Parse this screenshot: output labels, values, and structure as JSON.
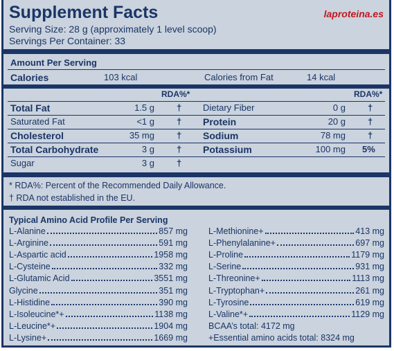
{
  "header": {
    "title": "Supplement Facts",
    "logo": "laproteina.es",
    "serving_size": "Serving Size: 28 g (approximately 1 level scoop)",
    "servings": "Servings Per Container: 33"
  },
  "amount_per_serving": "Amount Per Serving",
  "calories": {
    "label": "Calories",
    "value": "103 kcal"
  },
  "calories_from_fat": {
    "label": "Calories from Fat",
    "value": "14 kcal"
  },
  "rda_header": "RDA%*",
  "nutrients": {
    "left": [
      {
        "label": "Total Fat",
        "amount": "1.5 g",
        "rda": "†",
        "bold": true
      },
      {
        "label": "Saturated Fat",
        "amount": "<1 g",
        "rda": "†",
        "bold": false
      },
      {
        "label": "Cholesterol",
        "amount": "35 mg",
        "rda": "†",
        "bold": true
      },
      {
        "label": "Total Carbohydrate",
        "amount": "3 g",
        "rda": "†",
        "bold": true
      },
      {
        "label": "Sugar",
        "amount": "3 g",
        "rda": "†",
        "bold": false
      }
    ],
    "right": [
      {
        "label": "Dietary Fiber",
        "amount": "0 g",
        "rda": "†",
        "bold": false
      },
      {
        "label": "Protein",
        "amount": "20 g",
        "rda": "†",
        "bold": true
      },
      {
        "label": "Sodium",
        "amount": "78 mg",
        "rda": "†",
        "bold": true
      },
      {
        "label": "Potassium",
        "amount": "100 mg",
        "rda": "5%",
        "bold": true
      }
    ]
  },
  "footnotes": [
    "* RDA%: Percent of the Recommended Daily Allowance.",
    "† RDA not established in the EU."
  ],
  "amino": {
    "title": "Typical Amino Acid Profile Per Serving",
    "left": [
      {
        "name": "L-Alanine",
        "value": "857 mg"
      },
      {
        "name": "L-Arginine",
        "value": "591 mg"
      },
      {
        "name": "L-Aspartic acid",
        "value": "1958 mg"
      },
      {
        "name": "L-Cysteine",
        "value": "332 mg"
      },
      {
        "name": "L-Glutamic Acid",
        "value": "3551 mg"
      },
      {
        "name": "Glycine",
        "value": "351 mg"
      },
      {
        "name": "L-Histidine",
        "value": "390 mg"
      },
      {
        "name": "L-Isoleucine*+",
        "value": "1138 mg"
      },
      {
        "name": "L-Leucine*+",
        "value": "1904 mg"
      },
      {
        "name": "L-Lysine+",
        "value": "1669 mg"
      }
    ],
    "right": [
      {
        "name": "L-Methionine+",
        "value": "413 mg"
      },
      {
        "name": "L-Phenylalanine+",
        "value": "697 mg"
      },
      {
        "name": "L-Proline",
        "value": "1179 mg"
      },
      {
        "name": "L-Serine",
        "value": "931 mg"
      },
      {
        "name": "L-Threonine+",
        "value": "1113 mg"
      },
      {
        "name": "L-Tryptophan+",
        "value": "261 mg"
      },
      {
        "name": "L-Tyrosine",
        "value": "619 mg"
      },
      {
        "name": "L-Valine*+",
        "value": "1129 mg"
      }
    ],
    "totals": [
      "BCAA’s total: 4172 mg",
      "+Essential amino acids total: 8324 mg"
    ]
  }
}
